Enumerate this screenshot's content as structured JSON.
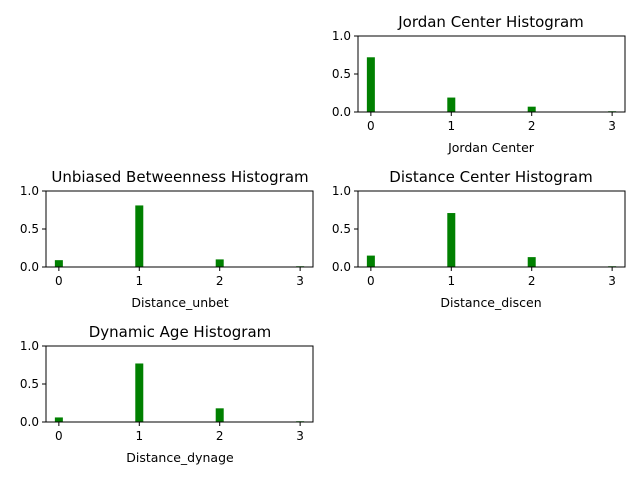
{
  "chart_data": [
    {
      "id": "jordan",
      "type": "bar",
      "title": "Jordan Center Histogram",
      "xlabel": "Jordan Center",
      "ylabel": "",
      "categories": [
        0,
        1,
        2,
        3
      ],
      "values": [
        0.72,
        0.19,
        0.07,
        0.01
      ],
      "xticks": [
        "0",
        "1",
        "2",
        "3"
      ],
      "yticks": [
        "0.0",
        "0.5",
        "1.0"
      ],
      "ylim": [
        0,
        1.0
      ],
      "color": "#008000",
      "grid": false
    },
    {
      "id": "unbet",
      "type": "bar",
      "title": "Unbiased Betweenness Histogram",
      "xlabel": "Distance_unbet",
      "ylabel": "",
      "categories": [
        0,
        1,
        2,
        3
      ],
      "values": [
        0.09,
        0.81,
        0.1,
        0.01
      ],
      "xticks": [
        "0",
        "1",
        "2",
        "3"
      ],
      "yticks": [
        "0.0",
        "0.5",
        "1.0"
      ],
      "ylim": [
        0,
        1.0
      ],
      "color": "#008000",
      "grid": false
    },
    {
      "id": "discen",
      "type": "bar",
      "title": "Distance Center Histogram",
      "xlabel": "Distance_discen",
      "ylabel": "",
      "categories": [
        0,
        1,
        2,
        3
      ],
      "values": [
        0.15,
        0.71,
        0.13,
        0.01
      ],
      "xticks": [
        "0",
        "1",
        "2",
        "3"
      ],
      "yticks": [
        "0.0",
        "0.5",
        "1.0"
      ],
      "ylim": [
        0,
        1.0
      ],
      "color": "#008000",
      "grid": false
    },
    {
      "id": "dynage",
      "type": "bar",
      "title": "Dynamic Age Histogram",
      "xlabel": "Distance_dynage",
      "ylabel": "",
      "categories": [
        0,
        1,
        2,
        3
      ],
      "values": [
        0.06,
        0.77,
        0.18,
        0.01
      ],
      "xticks": [
        "0",
        "1",
        "2",
        "3"
      ],
      "yticks": [
        "0.0",
        "0.5",
        "1.0"
      ],
      "ylim": [
        0,
        1.0
      ],
      "color": "#008000",
      "grid": false
    }
  ]
}
